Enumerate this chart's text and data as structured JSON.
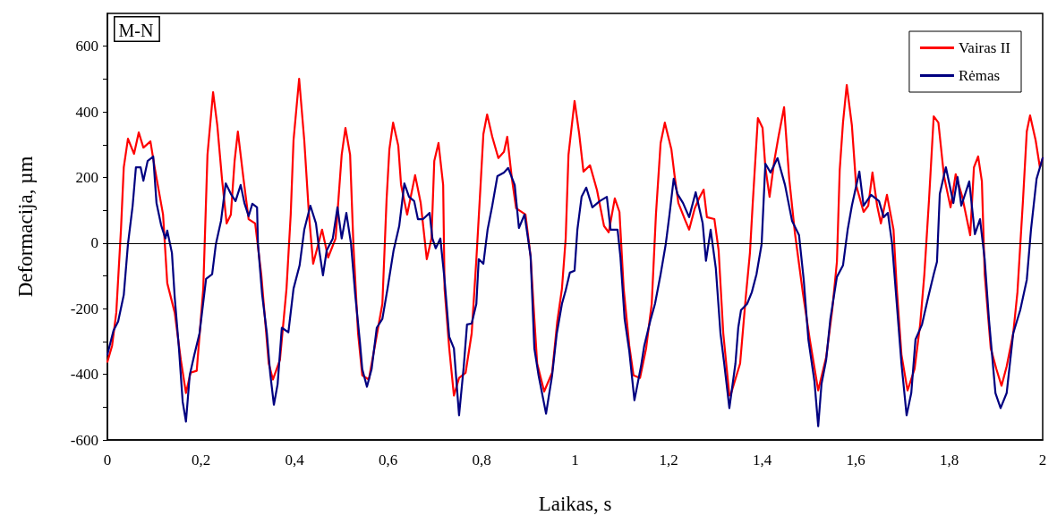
{
  "chart_data": {
    "type": "line",
    "xlabel": "Laikas, s",
    "ylabel": "Deformacija, µm",
    "annotations": [
      "M-N"
    ],
    "xlim": [
      0,
      2
    ],
    "ylim": [
      -600,
      700
    ],
    "xticks": [
      0,
      {
        "value": 0.2,
        "label": "0,2"
      },
      {
        "value": 0.4,
        "label": "0,4"
      },
      {
        "value": 0.6,
        "label": "0,6"
      },
      {
        "value": 0.8,
        "label": "0,8"
      },
      1,
      {
        "value": 1.2,
        "label": "1,2"
      },
      {
        "value": 1.4,
        "label": "1,4"
      },
      {
        "value": 1.6,
        "label": "1,6"
      },
      {
        "value": 1.8,
        "label": "1,8"
      },
      2
    ],
    "yticks": [
      -600,
      {
        "value": -500,
        "label": null
      },
      -400,
      {
        "value": -300,
        "label": null
      },
      -200,
      {
        "value": -100,
        "label": null
      },
      0,
      {
        "value": 100,
        "label": null
      },
      200,
      {
        "value": 300,
        "label": null
      },
      400,
      {
        "value": 500,
        "label": null
      },
      600
    ],
    "grid": false,
    "legend": "top right",
    "marker": "none",
    "line_style": "solid",
    "ref_lines": [
      {
        "axis": "y",
        "value": 0,
        "color": "#000000"
      }
    ],
    "series": [
      {
        "name": "Vairas II",
        "color": "#ff0000",
        "x": [
          0,
          0.01,
          0.019,
          0.029,
          0.035,
          0.044,
          0.057,
          0.067,
          0.077,
          0.092,
          0.101,
          0.119,
          0.128,
          0.144,
          0.157,
          0.168,
          0.178,
          0.191,
          0.205,
          0.214,
          0.226,
          0.235,
          0.245,
          0.255,
          0.264,
          0.272,
          0.279,
          0.291,
          0.302,
          0.316,
          0.329,
          0.345,
          0.354,
          0.369,
          0.383,
          0.392,
          0.398,
          0.41,
          0.421,
          0.431,
          0.44,
          0.459,
          0.472,
          0.488,
          0.501,
          0.509,
          0.519,
          0.526,
          0.536,
          0.545,
          0.559,
          0.57,
          0.588,
          0.597,
          0.603,
          0.611,
          0.622,
          0.628,
          0.641,
          0.658,
          0.67,
          0.683,
          0.693,
          0.699,
          0.708,
          0.718,
          0.721,
          0.731,
          0.741,
          0.752,
          0.766,
          0.779,
          0.789,
          0.798,
          0.804,
          0.812,
          0.823,
          0.836,
          0.848,
          0.855,
          0.865,
          0.874,
          0.894,
          0.905,
          0.913,
          0.919,
          0.934,
          0.951,
          0.962,
          0.972,
          0.98,
          0.986,
          0.999,
          1.009,
          1.018,
          1.032,
          1.047,
          1.062,
          1.072,
          1.085,
          1.095,
          1.104,
          1.116,
          1.125,
          1.139,
          1.152,
          1.164,
          1.173,
          1.183,
          1.192,
          1.206,
          1.213,
          1.221,
          1.236,
          1.244,
          1.256,
          1.265,
          1.275,
          1.282,
          1.298,
          1.307,
          1.317,
          1.33,
          1.334,
          1.353,
          1.365,
          1.374,
          1.38,
          1.391,
          1.401,
          1.407,
          1.416,
          1.426,
          1.435,
          1.447,
          1.458,
          1.47,
          1.487,
          1.502,
          1.52,
          1.537,
          1.55,
          1.56,
          1.566,
          1.573,
          1.581,
          1.592,
          1.601,
          1.617,
          1.627,
          1.636,
          1.646,
          1.654,
          1.667,
          1.681,
          1.688,
          1.698,
          1.711,
          1.726,
          1.738,
          1.747,
          1.757,
          1.767,
          1.777,
          1.789,
          1.803,
          1.814,
          1.828,
          1.845,
          1.853,
          1.862,
          1.87,
          1.876,
          1.889,
          1.901,
          1.912,
          1.923,
          1.937,
          1.946,
          1.958,
          1.966,
          1.973,
          1.985,
          1.994,
          2
        ],
        "values": [
          -362,
          -313,
          -212,
          41,
          231,
          318,
          272,
          337,
          291,
          310,
          231,
          87,
          -122,
          -212,
          -356,
          -457,
          -395,
          -389,
          -139,
          269,
          460,
          359,
          196,
          60,
          87,
          250,
          340,
          196,
          73,
          60,
          -95,
          -367,
          -416,
          -356,
          -139,
          87,
          313,
          501,
          313,
          87,
          -63,
          41,
          -44,
          14,
          269,
          351,
          269,
          -3,
          -275,
          -403,
          -416,
          -329,
          -185,
          133,
          286,
          367,
          297,
          177,
          87,
          207,
          122,
          -49,
          14,
          250,
          305,
          177,
          -139,
          -321,
          -465,
          -411,
          -395,
          -275,
          -49,
          177,
          332,
          392,
          324,
          259,
          278,
          324,
          196,
          106,
          87,
          -41,
          -231,
          -367,
          -452,
          -395,
          -239,
          -139,
          14,
          269,
          433,
          332,
          218,
          237,
          161,
          52,
          33,
          136,
          95,
          -139,
          -313,
          -403,
          -411,
          -321,
          -185,
          87,
          305,
          367,
          286,
          204,
          122,
          68,
          41,
          106,
          136,
          163,
          79,
          73,
          -22,
          -275,
          -465,
          -457,
          -367,
          -166,
          -30,
          122,
          381,
          351,
          231,
          141,
          250,
          324,
          414,
          196,
          33,
          -150,
          -294,
          -449,
          -348,
          -204,
          -57,
          223,
          367,
          482,
          359,
          177,
          95,
          114,
          215,
          114,
          60,
          147,
          41,
          -139,
          -340,
          -449,
          -384,
          -248,
          -95,
          133,
          386,
          367,
          204,
          109,
          210,
          141,
          24,
          231,
          264,
          188,
          -95,
          -321,
          -384,
          -435,
          -376,
          -275,
          -150,
          133,
          340,
          389,
          313,
          231,
          259
        ]
      },
      {
        "name": "Rėmas",
        "color": "#000080",
        "x": [
          0,
          0.013,
          0.023,
          0.035,
          0.044,
          0.054,
          0.061,
          0.071,
          0.077,
          0.086,
          0.098,
          0.105,
          0.115,
          0.124,
          0.128,
          0.138,
          0.144,
          0.153,
          0.161,
          0.168,
          0.176,
          0.186,
          0.197,
          0.211,
          0.224,
          0.232,
          0.243,
          0.253,
          0.264,
          0.274,
          0.285,
          0.293,
          0.302,
          0.31,
          0.32,
          0.322,
          0.331,
          0.341,
          0.348,
          0.356,
          0.364,
          0.373,
          0.387,
          0.398,
          0.411,
          0.421,
          0.434,
          0.446,
          0.453,
          0.461,
          0.469,
          0.482,
          0.492,
          0.501,
          0.511,
          0.521,
          0.53,
          0.54,
          0.545,
          0.555,
          0.565,
          0.576,
          0.588,
          0.599,
          0.612,
          0.624,
          0.635,
          0.645,
          0.656,
          0.664,
          0.675,
          0.689,
          0.695,
          0.702,
          0.712,
          0.721,
          0.731,
          0.741,
          0.752,
          0.762,
          0.769,
          0.779,
          0.789,
          0.794,
          0.804,
          0.813,
          0.823,
          0.834,
          0.848,
          0.857,
          0.871,
          0.88,
          0.892,
          0.905,
          0.913,
          0.922,
          0.938,
          0.951,
          0.961,
          0.972,
          0.98,
          0.989,
          0.999,
          1.005,
          1.014,
          1.024,
          1.037,
          1.053,
          1.068,
          1.076,
          1.091,
          1.097,
          1.106,
          1.116,
          1.127,
          1.141,
          1.148,
          1.162,
          1.171,
          1.183,
          1.194,
          1.202,
          1.211,
          1.219,
          1.231,
          1.244,
          1.258,
          1.273,
          1.28,
          1.29,
          1.301,
          1.311,
          1.319,
          1.33,
          1.343,
          1.349,
          1.355,
          1.368,
          1.378,
          1.388,
          1.399,
          1.407,
          1.418,
          1.433,
          1.449,
          1.464,
          1.479,
          1.489,
          1.499,
          1.512,
          1.52,
          1.527,
          1.537,
          1.546,
          1.56,
          1.573,
          1.583,
          1.592,
          1.608,
          1.617,
          1.633,
          1.65,
          1.66,
          1.669,
          1.678,
          1.688,
          1.698,
          1.709,
          1.719,
          1.728,
          1.742,
          1.755,
          1.767,
          1.774,
          1.78,
          1.793,
          1.809,
          1.818,
          1.826,
          1.843,
          1.855,
          1.866,
          1.876,
          1.885,
          1.899,
          1.91,
          1.923,
          1.937,
          1.952,
          1.966,
          1.975,
          1.987,
          2
        ],
        "values": [
          -340,
          -267,
          -239,
          -158,
          -3,
          114,
          231,
          231,
          190,
          250,
          264,
          122,
          54,
          14,
          38,
          -30,
          -166,
          -321,
          -484,
          -544,
          -403,
          -340,
          -275,
          -109,
          -95,
          -3,
          68,
          182,
          150,
          128,
          177,
          122,
          82,
          120,
          109,
          -3,
          -158,
          -275,
          -395,
          -493,
          -430,
          -258,
          -272,
          -139,
          -68,
          41,
          114,
          60,
          -22,
          -98,
          -22,
          14,
          109,
          14,
          92,
          -3,
          -158,
          -302,
          -384,
          -438,
          -384,
          -258,
          -231,
          -139,
          -22,
          52,
          182,
          141,
          128,
          73,
          73,
          92,
          14,
          -16,
          14,
          -112,
          -286,
          -321,
          -525,
          -376,
          -248,
          -245,
          -185,
          -49,
          -63,
          41,
          114,
          204,
          215,
          229,
          177,
          46,
          87,
          -41,
          -321,
          -403,
          -520,
          -403,
          -275,
          -185,
          -144,
          -90,
          -84,
          41,
          141,
          169,
          109,
          128,
          141,
          41,
          41,
          -41,
          -231,
          -329,
          -479,
          -376,
          -313,
          -231,
          -185,
          -95,
          -3,
          87,
          196,
          150,
          122,
          79,
          155,
          60,
          -54,
          41,
          -76,
          -275,
          -367,
          -503,
          -367,
          -258,
          -204,
          -185,
          -150,
          -95,
          -3,
          242,
          215,
          259,
          177,
          68,
          24,
          -112,
          -294,
          -422,
          -558,
          -430,
          -356,
          -231,
          -103,
          -68,
          41,
          114,
          218,
          114,
          147,
          128,
          79,
          92,
          -3,
          -185,
          -367,
          -525,
          -457,
          -294,
          -248,
          -166,
          -95,
          -57,
          150,
          231,
          122,
          201,
          114,
          188,
          27,
          73,
          -49,
          -231,
          -457,
          -503,
          -457,
          -275,
          -204,
          -112,
          41,
          196,
          259
        ]
      }
    ]
  }
}
